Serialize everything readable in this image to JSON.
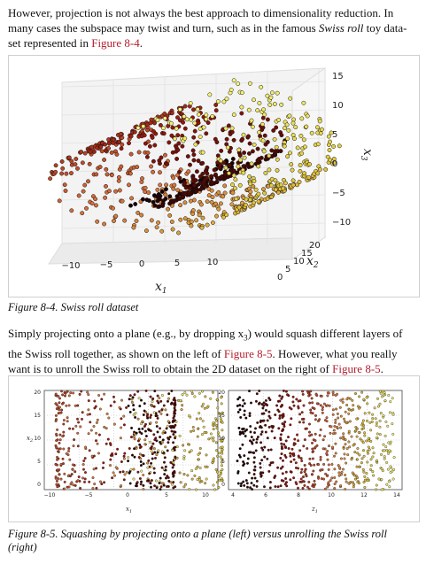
{
  "intro": {
    "part1": "However, projection is not always the best approach to dimensionality reduction. In many cases the subspace may twist and turn, such as in the famous ",
    "emph": "Swiss roll",
    "part2": " toy data-set represented in ",
    "ref": "Figure 8-4",
    "part3": "."
  },
  "figure1": {
    "caption": "Figure 8-4. Swiss roll dataset",
    "x_ticks": [
      "−10",
      "−5",
      "0",
      "5",
      "10"
    ],
    "y_ticks": [
      "0",
      "5",
      "10",
      "15",
      "20"
    ],
    "z_ticks": [
      "15",
      "10",
      "5",
      "0",
      "−5",
      "−10"
    ],
    "x_label": "x1",
    "y_label": "x2",
    "z_label": "x3"
  },
  "middle": {
    "part1": "Simply projecting onto a plane (e.g., by dropping x",
    "sub": "3",
    "part2": ") would squash different layers of the Swiss roll together, as shown on the left of ",
    "ref1": "Figure 8-5",
    "part3": ". However, what you really want is to unroll the Swiss roll to obtain the 2D dataset on the right of ",
    "ref2": "Figure 8-5",
    "part4": "."
  },
  "figure2": {
    "caption": "Figure 8-5. Squashing by projecting onto a plane (left) versus unrolling the Swiss roll (right)",
    "left": {
      "x_ticks": [
        "−10",
        "−5",
        "0",
        "5",
        "10"
      ],
      "y_ticks": [
        "20",
        "15",
        "10",
        "5",
        "0"
      ],
      "x_label": "x1",
      "y_label": "x2"
    },
    "right": {
      "x_ticks": [
        "4",
        "6",
        "8",
        "10",
        "12",
        "14"
      ],
      "y_ticks": [
        "20",
        "15",
        "10",
        "5",
        "0"
      ],
      "x_label": "z1"
    }
  },
  "colors": {
    "link": "#b3202e",
    "low": "#1a0000",
    "mid": "#c0301e",
    "high": "#f2f25a"
  }
}
